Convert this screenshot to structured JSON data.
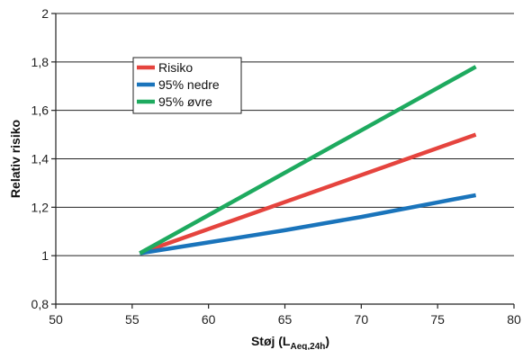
{
  "chart_data": {
    "type": "line",
    "title": "",
    "xlabel": "Støj (L",
    "xlabel_subscript": "Aeq,24h",
    "xlabel_suffix": ")",
    "ylabel": "Relativ risiko",
    "xlim": [
      50,
      80
    ],
    "ylim": [
      0.8,
      2
    ],
    "x_ticks": [
      50,
      55,
      60,
      65,
      70,
      75,
      80
    ],
    "x_tick_labels": [
      "50",
      "55",
      "60",
      "65",
      "70",
      "75",
      "80"
    ],
    "y_ticks": [
      0.8,
      1.0,
      1.2,
      1.4,
      1.6,
      1.8,
      2.0
    ],
    "y_tick_labels": [
      "0,8",
      "1",
      "1,2",
      "1,4",
      "1,6",
      "1,8",
      "2"
    ],
    "grid": "horizontal",
    "legend_position": "top-left",
    "series": [
      {
        "name": "Risiko",
        "color": "#e5443e",
        "x": [
          55.5,
          77.5
        ],
        "y": [
          1.01,
          1.5
        ]
      },
      {
        "name": "95% nedre",
        "color": "#1a74bb",
        "x": [
          55.5,
          60,
          65,
          70,
          75,
          77.5
        ],
        "y": [
          1.01,
          1.055,
          1.105,
          1.16,
          1.22,
          1.25
        ]
      },
      {
        "name": "95% øvre",
        "color": "#1eaa5f",
        "x": [
          55.5,
          77.5
        ],
        "y": [
          1.01,
          1.78
        ]
      }
    ]
  }
}
